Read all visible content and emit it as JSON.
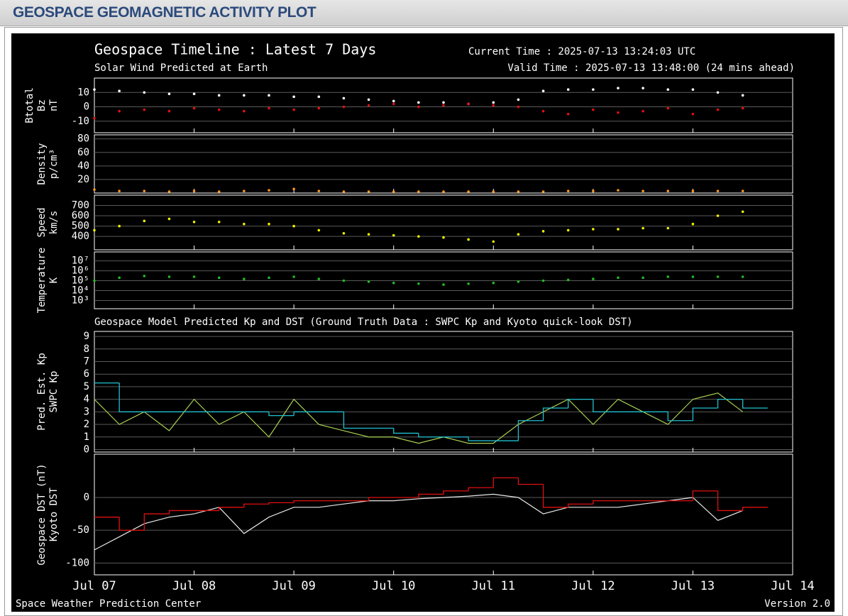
{
  "header": {
    "title": "GEOSPACE GEOMAGNETIC ACTIVITY PLOT"
  },
  "plot": {
    "title": "Geospace Timeline : Latest 7 Days",
    "current_time": "Current Time : 2025-07-13 13:24:03 UTC",
    "subtitle": "Solar Wind Predicted at Earth",
    "valid_time": "Valid Time : 2025-07-13 13:48:00 (24 mins ahead)",
    "section_title": "Geospace Model Predicted Kp and DST (Ground Truth Data : SWPC Kp and Kyoto quick-look DST)",
    "footer_left": "Space Weather Prediction Center",
    "footer_right": "Version 2.0"
  },
  "chart_data": [
    {
      "type": "scatter",
      "ylabel": "nT",
      "ylim": [
        -18,
        20
      ],
      "yticks": [
        10,
        0,
        -10
      ],
      "grid": true,
      "x": [
        0,
        0.25,
        0.5,
        0.75,
        1,
        1.25,
        1.5,
        1.75,
        2,
        2.25,
        2.5,
        2.75,
        3,
        3.25,
        3.5,
        3.75,
        4,
        4.25,
        4.5,
        4.75,
        5,
        5.25,
        5.5,
        5.75,
        6,
        6.25,
        6.5
      ],
      "series": [
        {
          "name": "Btotal",
          "color": "#ffffff",
          "values": [
            12,
            11,
            10,
            9,
            9,
            8,
            8,
            8,
            7,
            7,
            6,
            5,
            4,
            3,
            3,
            2,
            3,
            5,
            11,
            12,
            12,
            13,
            13,
            12,
            12,
            10,
            8
          ]
        },
        {
          "name": "Bz",
          "color": "#e01010",
          "values": [
            -8,
            -3,
            -2,
            -3,
            -1,
            -2,
            -3,
            -1,
            -2,
            -1,
            0,
            1,
            2,
            0,
            1,
            2,
            1,
            0,
            -3,
            -5,
            -2,
            -4,
            -3,
            -1,
            -5,
            -2,
            -1
          ]
        }
      ]
    },
    {
      "type": "scatter",
      "ylabel": "p/cm³",
      "ylim": [
        0,
        86
      ],
      "yticks": [
        80,
        60,
        40,
        20
      ],
      "grid": true,
      "x": [
        0,
        0.25,
        0.5,
        0.75,
        1,
        1.25,
        1.5,
        1.75,
        2,
        2.25,
        2.5,
        2.75,
        3,
        3.25,
        3.5,
        3.75,
        4,
        4.25,
        4.5,
        4.75,
        5,
        5.25,
        5.5,
        5.75,
        6,
        6.25,
        6.5
      ],
      "series": [
        {
          "name": "Density",
          "color": "#ff9922",
          "values": [
            5,
            3,
            3,
            2,
            3,
            2,
            3,
            4,
            6,
            3,
            2,
            2,
            2,
            2,
            2,
            2,
            2,
            2,
            2,
            3,
            3,
            4,
            3,
            3,
            3,
            3,
            3
          ]
        }
      ]
    },
    {
      "type": "scatter",
      "ylabel": "km/s",
      "ylim": [
        270,
        800
      ],
      "yticks": [
        700,
        600,
        500,
        400
      ],
      "grid": true,
      "x": [
        0,
        0.25,
        0.5,
        0.75,
        1,
        1.25,
        1.5,
        1.75,
        2,
        2.25,
        2.5,
        2.75,
        3,
        3.25,
        3.5,
        3.75,
        4,
        4.25,
        4.5,
        4.75,
        5,
        5.25,
        5.5,
        5.75,
        6,
        6.25,
        6.5
      ],
      "series": [
        {
          "name": "Speed",
          "color": "#f0f000",
          "values": [
            460,
            500,
            550,
            570,
            540,
            540,
            520,
            520,
            500,
            460,
            430,
            420,
            410,
            400,
            390,
            370,
            350,
            420,
            450,
            460,
            470,
            470,
            480,
            480,
            520,
            600,
            640
          ]
        }
      ]
    },
    {
      "type": "scatter",
      "ylabel": "K",
      "log": true,
      "ylim": [
        150,
        80000000
      ],
      "yticks": [
        {
          "value": 10000000,
          "label": "10⁷"
        },
        {
          "value": 1000000,
          "label": "10⁶"
        },
        {
          "value": 100000,
          "label": "10⁵"
        },
        {
          "value": 10000,
          "label": "10⁴"
        },
        {
          "value": 1000,
          "label": "10³"
        }
      ],
      "grid": true,
      "x": [
        0,
        0.25,
        0.5,
        0.75,
        1,
        1.25,
        1.5,
        1.75,
        2,
        2.25,
        2.5,
        2.75,
        3,
        3.25,
        3.5,
        3.75,
        4,
        4.25,
        4.5,
        4.75,
        5,
        5.25,
        5.5,
        5.75,
        6,
        6.25,
        6.5
      ],
      "series": [
        {
          "name": "Temperature",
          "color": "#22bb22",
          "values": [
            100000,
            200000,
            300000,
            250000,
            250000,
            200000,
            150000,
            200000,
            250000,
            150000,
            100000,
            80000,
            60000,
            50000,
            40000,
            50000,
            60000,
            80000,
            100000,
            120000,
            150000,
            200000,
            200000,
            250000,
            250000,
            250000,
            250000
          ]
        }
      ]
    },
    {
      "type": "line",
      "ylim": [
        -0.2,
        9.4
      ],
      "yticks": [
        9,
        8,
        7,
        6,
        5,
        4,
        3,
        2,
        1,
        0
      ],
      "grid": true,
      "x": [
        0,
        0.25,
        0.5,
        0.75,
        1,
        1.25,
        1.5,
        1.75,
        2,
        2.25,
        2.5,
        2.75,
        3,
        3.25,
        3.5,
        3.75,
        4,
        4.25,
        4.5,
        4.75,
        5,
        5.25,
        5.5,
        5.75,
        6,
        6.25,
        6.5
      ],
      "series": [
        {
          "name": "Pred. Est. Kp",
          "color": "#a8d050",
          "values": [
            4,
            2,
            3,
            1.5,
            4,
            2,
            3,
            1,
            4,
            2,
            1.5,
            1,
            1,
            0.5,
            1,
            0.5,
            0.5,
            2,
            3,
            4,
            2,
            4,
            3,
            2,
            4,
            4.5,
            3
          ]
        },
        {
          "name": "SWPC Kp",
          "color": "#20c0d0",
          "step": true,
          "values": [
            5.3,
            3,
            3,
            3,
            3,
            3,
            3,
            2.7,
            3,
            3,
            1.7,
            1.7,
            1.3,
            1,
            1,
            0.7,
            0.7,
            2.3,
            3.3,
            4,
            3,
            3,
            3,
            2.3,
            3.3,
            4,
            3.3
          ]
        }
      ]
    },
    {
      "type": "line",
      "ylim": [
        -118,
        66
      ],
      "yticks": [
        0,
        -50,
        -100
      ],
      "grid": true,
      "xlim": [
        0,
        7
      ],
      "xticks": [
        {
          "value": 0,
          "label": "Jul 07"
        },
        {
          "value": 1,
          "label": "Jul 08"
        },
        {
          "value": 2,
          "label": "Jul 09"
        },
        {
          "value": 3,
          "label": "Jul 10"
        },
        {
          "value": 4,
          "label": "Jul 11"
        },
        {
          "value": 5,
          "label": "Jul 12"
        },
        {
          "value": 6,
          "label": "Jul 13"
        },
        {
          "value": 7,
          "label": "Jul 14"
        }
      ],
      "x": [
        0,
        0.25,
        0.5,
        0.75,
        1,
        1.25,
        1.5,
        1.75,
        2,
        2.25,
        2.5,
        2.75,
        3,
        3.25,
        3.5,
        3.75,
        4,
        4.25,
        4.5,
        4.75,
        5,
        5.25,
        5.5,
        5.75,
        6,
        6.25,
        6.5
      ],
      "series": [
        {
          "name": "Geospace DST (nT)",
          "color": "#e8e8e8",
          "values": [
            -80,
            -60,
            -40,
            -30,
            -25,
            -15,
            -55,
            -30,
            -15,
            -15,
            -10,
            -5,
            -5,
            -2,
            0,
            2,
            5,
            0,
            -25,
            -15,
            -15,
            -15,
            -10,
            -5,
            0,
            -35,
            -20
          ]
        },
        {
          "name": "Kyoto DST",
          "color": "#e01010",
          "step": true,
          "values": [
            -30,
            -50,
            -25,
            -20,
            -20,
            -15,
            -10,
            -8,
            -5,
            -5,
            -5,
            0,
            0,
            5,
            10,
            15,
            30,
            20,
            -15,
            -10,
            -5,
            -5,
            -5,
            -5,
            10,
            -20,
            -15
          ]
        }
      ]
    }
  ]
}
